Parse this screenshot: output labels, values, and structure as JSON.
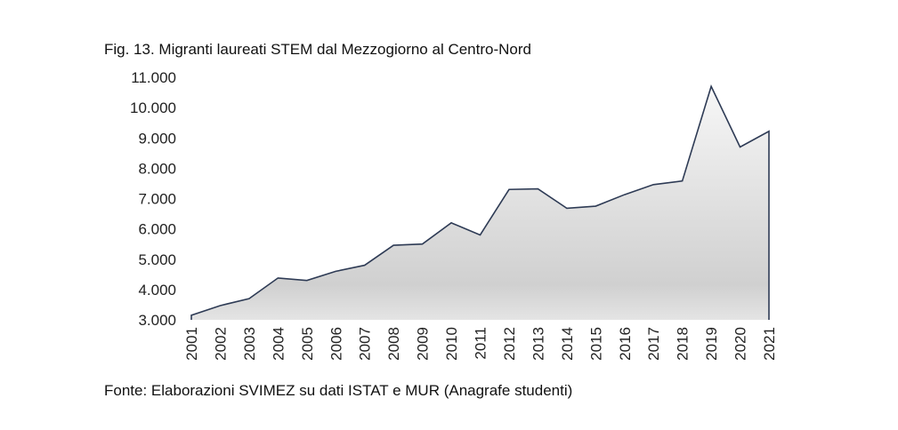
{
  "chart_data": {
    "type": "area",
    "title": "Fig. 13. Migranti laureati STEM dal Mezzogiorno al Centro-Nord",
    "source": "Fonte: Elaborazioni SVIMEZ su dati ISTAT e MUR (Anagrafe studenti)",
    "x": [
      "2001",
      "2002",
      "2003",
      "2004",
      "2005",
      "2006",
      "2007",
      "2008",
      "2009",
      "2010",
      "2011",
      "2012",
      "2013",
      "2014",
      "2015",
      "2016",
      "2017",
      "2018",
      "2019",
      "2020",
      "2021"
    ],
    "values": [
      3150,
      3470,
      3700,
      4380,
      4300,
      4600,
      4800,
      5460,
      5500,
      6200,
      5800,
      7300,
      7320,
      6680,
      6750,
      7130,
      7460,
      7580,
      10700,
      8700,
      9220
    ],
    "ylim": [
      3000,
      11000
    ],
    "yticks": [
      3000,
      4000,
      5000,
      6000,
      7000,
      8000,
      9000,
      10000,
      11000
    ],
    "ytick_labels": [
      "3.000",
      "4.000",
      "5.000",
      "6.000",
      "7.000",
      "8.000",
      "9.000",
      "10.000",
      "11.000"
    ],
    "grid": false,
    "colors": {
      "line": "#2e3b55",
      "fill_top": "#f7f7f7",
      "fill_bottom": "#d0d0d0"
    }
  }
}
